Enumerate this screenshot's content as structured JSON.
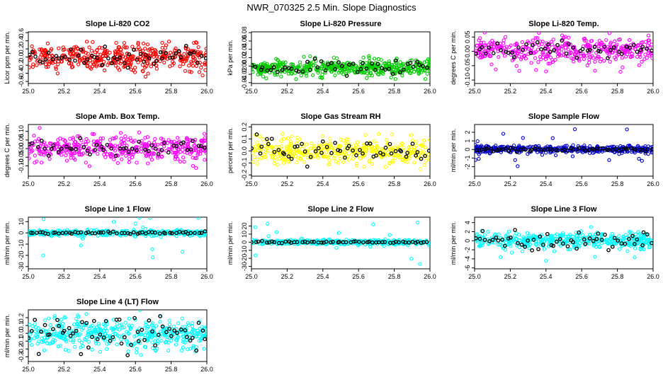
{
  "figure": {
    "title": "NWR_070325  2.5 Min. Slope Diagnostics"
  },
  "colors": {
    "red": "#ff0000",
    "green": "#00cc00",
    "magenta": "#ff00ff",
    "yellow": "#ffff00",
    "blue": "#0000cc",
    "cyan": "#00ffff",
    "black": "#000000"
  },
  "chart_data": [
    {
      "type": "scatter",
      "title": "Slope Li-820 CO2",
      "ylabel": "Licor ppm per min.",
      "color": "red",
      "xlim": [
        25.0,
        26.0
      ],
      "ylim": [
        -0.65,
        0.62
      ],
      "yticks": [
        -0.6,
        -0.4,
        -0.2,
        0.0,
        0.2,
        0.4,
        0.6
      ],
      "ytick_labels": [
        "-0.6",
        "-0.4",
        "-0.2",
        "0.0",
        "0.2",
        "0.4",
        "0.6"
      ],
      "xticks": [
        25.0,
        25.2,
        25.4,
        25.6,
        25.8,
        26.0
      ],
      "xtick_labels": [
        "25.0",
        "25.2",
        "25.4",
        "25.6",
        "25.8",
        "26.0"
      ],
      "spread": 0.16,
      "outlier": 0.35,
      "black_spread": 0.12,
      "n": 420,
      "n_black": 55,
      "seed": 11
    },
    {
      "type": "scatter",
      "title": "Slope Li-820 Pressure",
      "ylabel": "kPa per min.",
      "color": "green",
      "xlim": [
        25.0,
        26.0
      ],
      "ylim": [
        -0.042,
        0.082
      ],
      "yticks": [
        -0.04,
        -0.02,
        0.0,
        0.02,
        0.04,
        0.06,
        0.08
      ],
      "ytick_labels": [
        "-0.04",
        "-0.02",
        "0.00",
        "0.02",
        "0.04",
        "0.06",
        "0.08"
      ],
      "xticks": [
        25.0,
        25.2,
        25.4,
        25.6,
        25.8,
        26.0
      ],
      "xtick_labels": [
        "25.0",
        "25.2",
        "25.4",
        "25.6",
        "25.8",
        "26.0"
      ],
      "spread": 0.009,
      "center": -0.005,
      "outlier": 0.03,
      "black_spread": 0.007,
      "n": 480,
      "n_black": 50,
      "seed": 23
    },
    {
      "type": "scatter",
      "title": "Slope Li-820 Temp.",
      "ylabel": "degrees C per min.",
      "color": "magenta",
      "xlim": [
        25.0,
        26.0
      ],
      "ylim": [
        -0.112,
        0.068
      ],
      "yticks": [
        -0.1,
        -0.05,
        0.0,
        0.05
      ],
      "ytick_labels": [
        "-0.10",
        "-0.05",
        "0.00",
        "0.05"
      ],
      "xticks": [
        25.0,
        25.2,
        25.4,
        25.6,
        25.8,
        26.0
      ],
      "xtick_labels": [
        "25.0",
        "25.2",
        "25.4",
        "25.6",
        "25.8",
        "26.0"
      ],
      "spread": 0.02,
      "center": 0.005,
      "outlier": 0.08,
      "black_spread": 0.015,
      "n": 400,
      "n_black": 50,
      "seed": 37
    },
    {
      "type": "scatter",
      "title": "Slope Amb. Box Temp.",
      "ylabel": "degrees C per min.",
      "color": "magenta",
      "xlim": [
        25.0,
        26.0
      ],
      "ylim": [
        -0.16,
        0.14
      ],
      "yticks": [
        -0.1,
        -0.05,
        0.0,
        0.05,
        0.1
      ],
      "ytick_labels": [
        "-0.10",
        "-0.05",
        "0.00",
        "0.05",
        "0.10"
      ],
      "xticks": [
        25.0,
        25.2,
        25.4,
        25.6,
        25.8,
        26.0
      ],
      "xtick_labels": [
        "25.0",
        "25.2",
        "25.4",
        "25.6",
        "25.8",
        "26.0"
      ],
      "spread": 0.035,
      "center": 0.0,
      "outlier": 0.12,
      "black_spread": 0.02,
      "n": 400,
      "n_black": 50,
      "seed": 41
    },
    {
      "type": "scatter",
      "title": "Slope Gas Stream RH",
      "ylabel": "percent per min.",
      "color": "yellow",
      "xlim": [
        25.0,
        26.0
      ],
      "ylim": [
        -0.21,
        0.22
      ],
      "yticks": [
        -0.2,
        -0.1,
        0.0,
        0.1,
        0.2
      ],
      "ytick_labels": [
        "-0.2",
        "-0.1",
        "0.0",
        "0.1",
        "0.2"
      ],
      "xticks": [
        25.0,
        25.2,
        25.4,
        25.6,
        25.8,
        26.0
      ],
      "xtick_labels": [
        "25.0",
        "25.2",
        "25.4",
        "25.6",
        "25.8",
        "26.0"
      ],
      "spread": 0.05,
      "center": 0.0,
      "outlier": 0.18,
      "black_spread": 0.05,
      "n": 400,
      "n_black": 55,
      "seed": 53
    },
    {
      "type": "scatter",
      "title": "Slope Sample Flow",
      "ylabel": "ml/min per min.",
      "color": "blue",
      "xlim": [
        25.0,
        26.0
      ],
      "ylim": [
        -3.1,
        2.9
      ],
      "yticks": [
        -2,
        -1,
        0,
        1,
        2
      ],
      "ytick_labels": [
        "-2",
        "-1",
        "0",
        "1",
        "2"
      ],
      "xticks": [
        25.0,
        25.2,
        25.4,
        25.6,
        25.8,
        26.0
      ],
      "xtick_labels": [
        "25.0",
        "25.2",
        "25.4",
        "25.6",
        "25.8",
        "26.0"
      ],
      "spread": 0.2,
      "center": 0.0,
      "outlier": 2.4,
      "black_spread": 0.1,
      "n": 420,
      "n_black": 60,
      "seed": 67
    },
    {
      "type": "scatter",
      "title": "Slope Line 1 Flow",
      "ylabel": "ml/min per min.",
      "color": "cyan",
      "xlim": [
        25.0,
        26.0
      ],
      "ylim": [
        -32,
        14
      ],
      "yticks": [
        -30,
        -20,
        -10,
        0,
        10
      ],
      "ytick_labels": [
        "-30",
        "-20",
        "-10",
        "0",
        "10"
      ],
      "xticks": [
        25.0,
        25.2,
        25.4,
        25.6,
        25.8,
        26.0
      ],
      "xtick_labels": [
        "25.0",
        "25.2",
        "25.4",
        "25.6",
        "25.8",
        "26.0"
      ],
      "spread": 1.2,
      "center": 0.0,
      "outlier": 25,
      "black_spread": 0.5,
      "n": 420,
      "n_black": 55,
      "seed": 71
    },
    {
      "type": "scatter",
      "title": "Slope Line 2 Flow",
      "ylabel": "ml/min per min.",
      "color": "cyan",
      "xlim": [
        25.0,
        26.0
      ],
      "ylim": [
        -33,
        31
      ],
      "yticks": [
        -30,
        -20,
        -10,
        0,
        10,
        20
      ],
      "ytick_labels": [
        "-30",
        "-20",
        "-10",
        "0",
        "10",
        "20"
      ],
      "xticks": [
        25.0,
        25.2,
        25.4,
        25.6,
        25.8,
        26.0
      ],
      "xtick_labels": [
        "25.0",
        "25.2",
        "25.4",
        "25.6",
        "25.8",
        "26.0"
      ],
      "spread": 1.5,
      "center": 0.0,
      "outlier": 28,
      "black_spread": 0.6,
      "n": 420,
      "n_black": 55,
      "seed": 83
    },
    {
      "type": "scatter",
      "title": "Slope Line 3 Flow",
      "ylabel": "ml/min per min.",
      "color": "cyan",
      "xlim": [
        25.0,
        26.0
      ],
      "ylim": [
        -6.2,
        5.2
      ],
      "yticks": [
        -6,
        -4,
        -2,
        0,
        2,
        4
      ],
      "ytick_labels": [
        "-6",
        "-4",
        "-2",
        "0",
        "2",
        "4"
      ],
      "xticks": [
        25.0,
        25.2,
        25.4,
        25.6,
        25.8,
        26.0
      ],
      "xtick_labels": [
        "25.0",
        "25.2",
        "25.4",
        "25.6",
        "25.8",
        "26.0"
      ],
      "spread": 0.9,
      "center": 0.0,
      "outlier": 4.5,
      "black_spread": 0.9,
      "n": 420,
      "n_black": 55,
      "seed": 97
    },
    {
      "type": "scatter",
      "title": "Slope Line 4 (LT) Flow",
      "ylabel": "ml/min per min.",
      "color": "cyan",
      "xlim": [
        25.0,
        26.0
      ],
      "ylim": [
        -0.36,
        0.3
      ],
      "yticks": [
        -0.3,
        -0.2,
        -0.1,
        0.0,
        0.1,
        0.2
      ],
      "ytick_labels": [
        "-0.3",
        "-0.2",
        "-0.1",
        "0.0",
        "0.1",
        "0.2"
      ],
      "xticks": [
        25.0,
        25.2,
        25.4,
        25.6,
        25.8,
        26.0
      ],
      "xtick_labels": [
        "25.0",
        "25.2",
        "25.4",
        "25.6",
        "25.8",
        "26.0"
      ],
      "spread": 0.09,
      "center": 0.0,
      "outlier": 0.25,
      "black_spread": 0.1,
      "n": 420,
      "n_black": 60,
      "seed": 101
    }
  ]
}
